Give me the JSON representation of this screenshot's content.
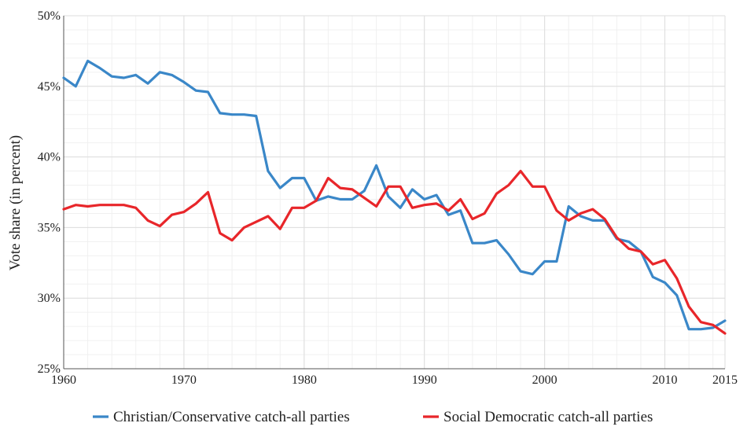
{
  "chart_data": {
    "type": "line",
    "title": "",
    "xlabel": "",
    "ylabel": "Vote share (in percent)",
    "xlim": [
      1960,
      2015
    ],
    "ylim": [
      25,
      50
    ],
    "x_ticks": [
      {
        "value": 1960,
        "label": "1960"
      },
      {
        "value": 1970,
        "label": "1970"
      },
      {
        "value": 1980,
        "label": "1980"
      },
      {
        "value": 1990,
        "label": "1990"
      },
      {
        "value": 2000,
        "label": "2000"
      },
      {
        "value": 2010,
        "label": "2010"
      },
      {
        "value": 2015,
        "label": "2015"
      }
    ],
    "y_ticks": [
      {
        "value": 25,
        "label": "25%"
      },
      {
        "value": 30,
        "label": "30%"
      },
      {
        "value": 35,
        "label": "35%"
      },
      {
        "value": 40,
        "label": "40%"
      },
      {
        "value": 45,
        "label": "45%"
      },
      {
        "value": 50,
        "label": "50%"
      }
    ],
    "grid": true,
    "legend_position": "bottom",
    "x": [
      1960,
      1961,
      1962,
      1963,
      1964,
      1965,
      1966,
      1967,
      1968,
      1969,
      1970,
      1971,
      1972,
      1973,
      1974,
      1975,
      1976,
      1977,
      1978,
      1979,
      1980,
      1981,
      1982,
      1983,
      1984,
      1985,
      1986,
      1987,
      1988,
      1989,
      1990,
      1991,
      1992,
      1993,
      1994,
      1995,
      1996,
      1997,
      1998,
      1999,
      2000,
      2001,
      2002,
      2003,
      2004,
      2005,
      2006,
      2007,
      2008,
      2009,
      2010,
      2011,
      2012,
      2013,
      2014,
      2015
    ],
    "series": [
      {
        "name": "Christian/Conservative catch-all parties",
        "color": "#3a87c8",
        "values": [
          45.6,
          45.0,
          46.8,
          46.3,
          45.7,
          45.6,
          45.8,
          45.2,
          46.0,
          45.8,
          45.3,
          44.7,
          44.6,
          43.1,
          43.0,
          43.0,
          42.9,
          39.0,
          37.8,
          38.5,
          38.5,
          36.9,
          37.2,
          37.0,
          37.0,
          37.6,
          39.4,
          37.2,
          36.4,
          37.7,
          37.0,
          37.3,
          35.9,
          36.2,
          33.9,
          33.9,
          34.1,
          33.1,
          31.9,
          31.7,
          32.6,
          32.6,
          36.5,
          35.8,
          35.5,
          35.5,
          34.2,
          34.0,
          33.3,
          31.5,
          31.1,
          30.2,
          27.8,
          27.8,
          27.9,
          28.4
        ]
      },
      {
        "name": "Social Democratic catch-all parties",
        "color": "#e8262a",
        "values": [
          36.3,
          36.6,
          36.5,
          36.6,
          36.6,
          36.6,
          36.4,
          35.5,
          35.1,
          35.9,
          36.1,
          36.7,
          37.5,
          34.6,
          34.1,
          35.0,
          35.4,
          35.8,
          34.9,
          36.4,
          36.4,
          36.9,
          38.5,
          37.8,
          37.7,
          37.1,
          36.5,
          37.9,
          37.9,
          36.4,
          36.6,
          36.7,
          36.2,
          37.0,
          35.6,
          36.0,
          37.4,
          38.0,
          39.0,
          37.9,
          37.9,
          36.2,
          35.5,
          36.0,
          36.3,
          35.6,
          34.3,
          33.5,
          33.3,
          32.4,
          32.7,
          31.4,
          29.4,
          28.3,
          28.1,
          27.5
        ]
      }
    ]
  }
}
